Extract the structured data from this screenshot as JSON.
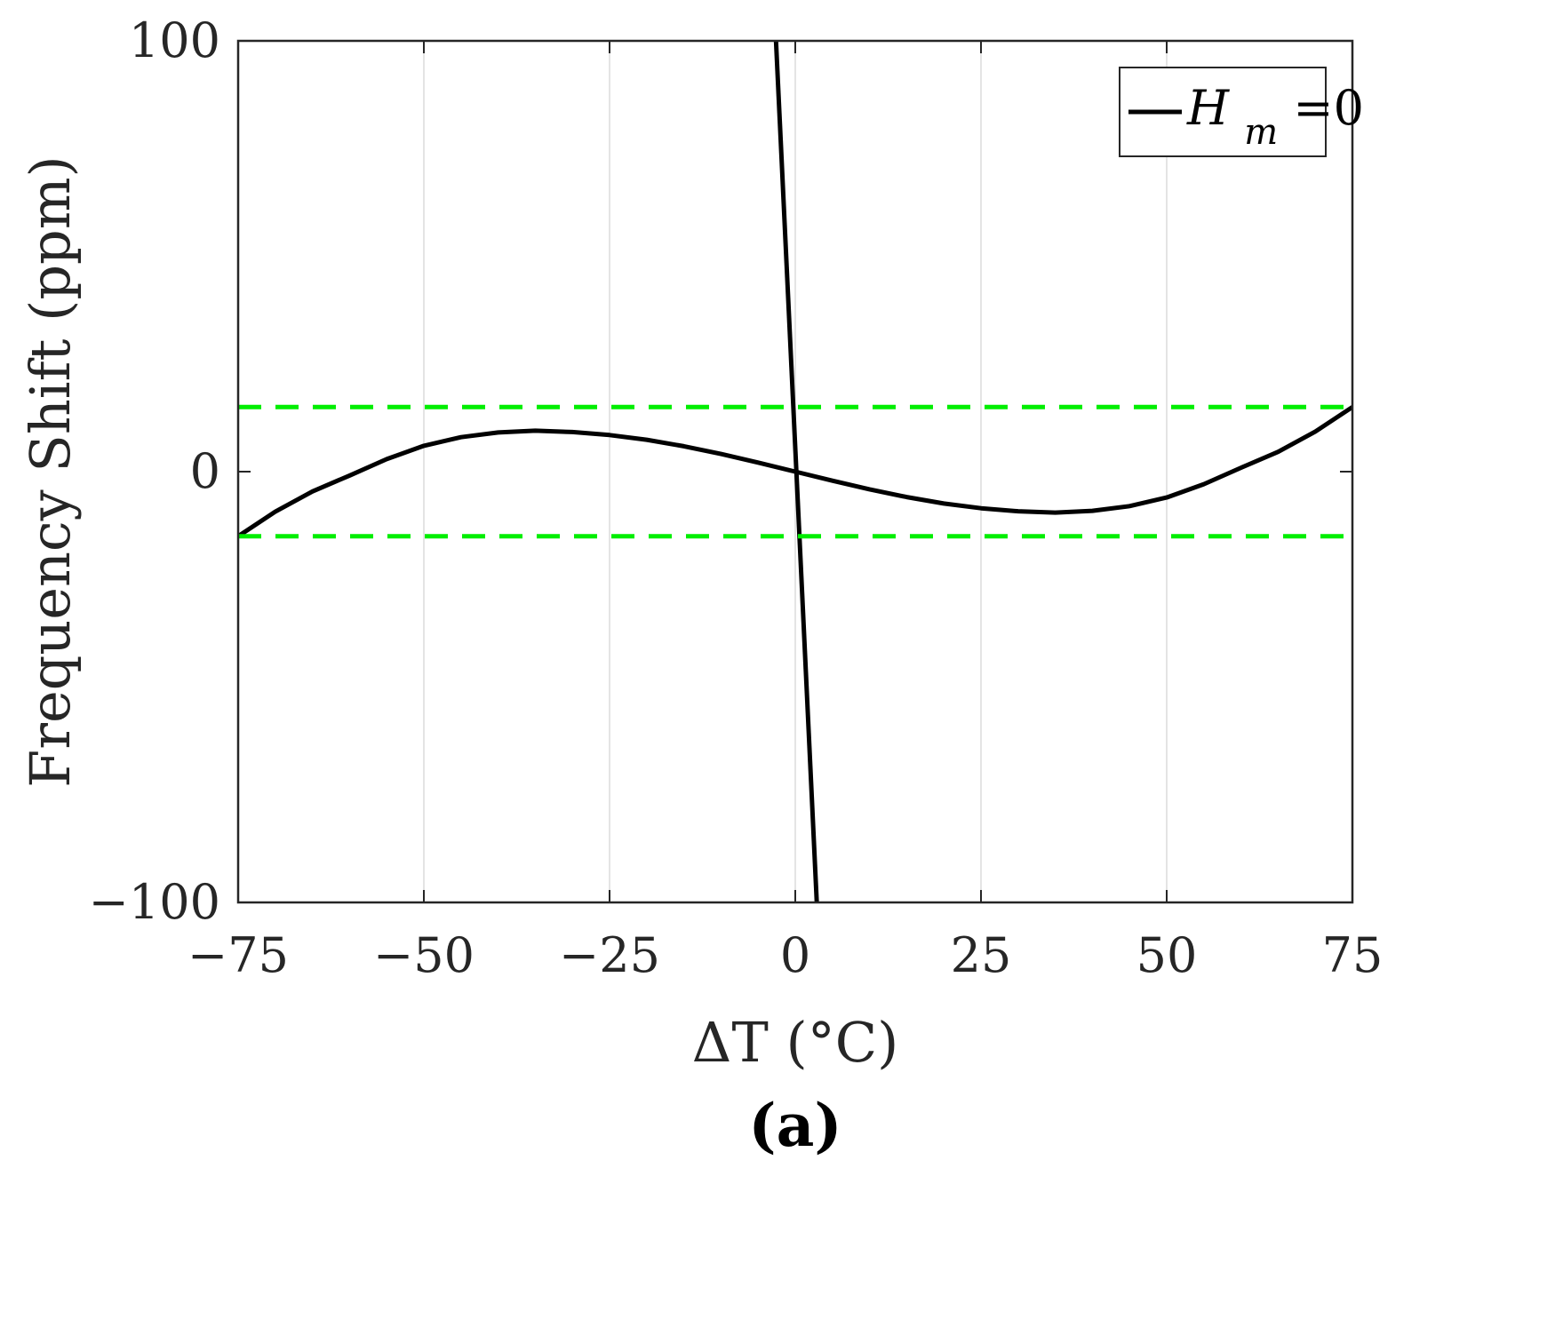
{
  "chart_data": {
    "type": "line",
    "xlabel": "ΔT (°C)",
    "ylabel": "Frequency Shift (ppm)",
    "panel_label": "(a)",
    "xlim": [
      -75,
      75
    ],
    "ylim": [
      -100,
      100
    ],
    "xticks": [
      -75,
      -50,
      -25,
      0,
      25,
      50,
      75
    ],
    "xtick_labels": [
      "−75",
      "−50",
      "−25",
      "0",
      "25",
      "50",
      "75"
    ],
    "yticks": [
      -100,
      0,
      100
    ],
    "ytick_labels": [
      "−100",
      "0",
      "100"
    ],
    "grid": "vertical",
    "legend": {
      "placement": "top-right",
      "entries": [
        {
          "label_main": "H",
          "label_sub": "m",
          "label_tail": "=0",
          "color": "#000000"
        }
      ]
    },
    "series": [
      {
        "name": "H_m=0",
        "color": "#000000",
        "style": "solid",
        "x": [
          -75,
          -70,
          -65,
          -60,
          -55,
          -50,
          -45,
          -40,
          -35,
          -30,
          -25,
          -20,
          -15,
          -10,
          -5,
          0,
          5,
          10,
          15,
          20,
          25,
          30,
          35,
          40,
          45,
          50,
          55,
          60,
          65,
          70,
          75
        ],
        "y": [
          -15.0,
          -9.3,
          -4.6,
          -0.9,
          2.9,
          6.0,
          8.0,
          9.1,
          9.5,
          9.2,
          8.5,
          7.4,
          5.9,
          4.1,
          2.1,
          0.0,
          -2.1,
          -4.1,
          -5.9,
          -7.4,
          -8.5,
          -9.2,
          -9.5,
          -9.1,
          -8.0,
          -6.0,
          -2.9,
          0.9,
          4.6,
          9.3,
          15.0
        ]
      },
      {
        "name": "",
        "color": "#000000",
        "style": "solid",
        "x": [
          -2.6,
          2.9
        ],
        "y": [
          100,
          -100
        ]
      },
      {
        "name": "",
        "color": "#00ee00",
        "style": "dashed",
        "x": [
          -75,
          75
        ],
        "y": [
          15,
          15
        ]
      },
      {
        "name": "",
        "color": "#00ee00",
        "style": "dashed",
        "x": [
          -75,
          75
        ],
        "y": [
          -15,
          -15
        ]
      }
    ]
  }
}
